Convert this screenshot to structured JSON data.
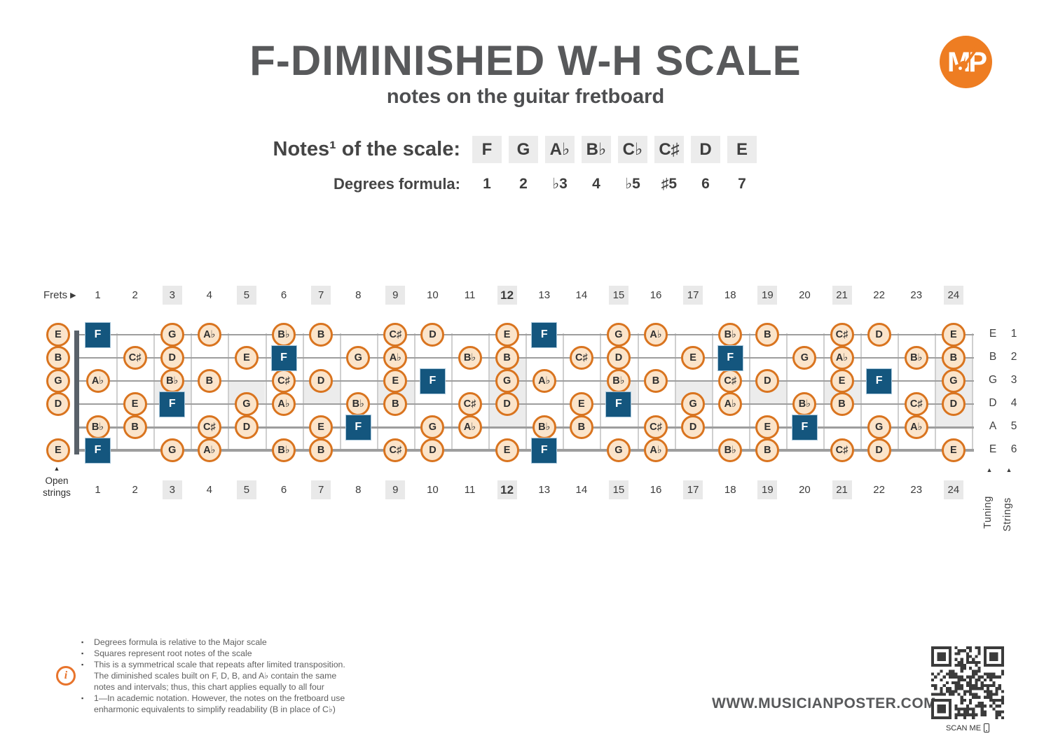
{
  "header": {
    "title": "F-DIMINISHED W-H SCALE",
    "subtitle": "notes on the guitar fretboard",
    "logo_text": "MP"
  },
  "scale": {
    "notes_label": "Notes¹ of the scale:",
    "notes": [
      "F",
      "G",
      "A♭",
      "B♭",
      "C♭",
      "C♯",
      "D",
      "E"
    ],
    "degrees_label": "Degrees formula:",
    "degrees": [
      "1",
      "2",
      "♭3",
      "4",
      "♭5",
      "♯5",
      "6",
      "7"
    ]
  },
  "fretboard": {
    "frets_label": "Frets",
    "frets_arrow": "▶",
    "fret_numbers": [
      1,
      2,
      3,
      4,
      5,
      6,
      7,
      8,
      9,
      10,
      11,
      12,
      13,
      14,
      15,
      16,
      17,
      18,
      19,
      20,
      21,
      22,
      23,
      24
    ],
    "marker_frets": [
      3,
      5,
      7,
      9,
      15,
      17,
      19,
      21
    ],
    "double_marker_frets": [
      12,
      24
    ],
    "bold_frets": [
      12
    ],
    "open_strings_arrow": "▲",
    "open_strings_label": "Open strings",
    "tuning_label": "Tuning",
    "strings_label": "Strings",
    "tuning_arrow": "▲",
    "strings_arrow": "▲",
    "strings": [
      {
        "tuning": "E",
        "number": 1,
        "open": "E",
        "notes": [
          {
            "fret": 1,
            "label": "F",
            "root": true
          },
          {
            "fret": 3,
            "label": "G"
          },
          {
            "fret": 4,
            "label": "A♭"
          },
          {
            "fret": 6,
            "label": "B♭"
          },
          {
            "fret": 7,
            "label": "B"
          },
          {
            "fret": 9,
            "label": "C♯"
          },
          {
            "fret": 10,
            "label": "D"
          },
          {
            "fret": 12,
            "label": "E"
          },
          {
            "fret": 13,
            "label": "F",
            "root": true
          },
          {
            "fret": 15,
            "label": "G"
          },
          {
            "fret": 16,
            "label": "A♭"
          },
          {
            "fret": 18,
            "label": "B♭"
          },
          {
            "fret": 19,
            "label": "B"
          },
          {
            "fret": 21,
            "label": "C♯"
          },
          {
            "fret": 22,
            "label": "D"
          },
          {
            "fret": 24,
            "label": "E"
          }
        ]
      },
      {
        "tuning": "B",
        "number": 2,
        "open": "B",
        "notes": [
          {
            "fret": 2,
            "label": "C♯"
          },
          {
            "fret": 3,
            "label": "D"
          },
          {
            "fret": 5,
            "label": "E"
          },
          {
            "fret": 6,
            "label": "F",
            "root": true
          },
          {
            "fret": 8,
            "label": "G"
          },
          {
            "fret": 9,
            "label": "A♭"
          },
          {
            "fret": 11,
            "label": "B♭"
          },
          {
            "fret": 12,
            "label": "B"
          },
          {
            "fret": 14,
            "label": "C♯"
          },
          {
            "fret": 15,
            "label": "D"
          },
          {
            "fret": 17,
            "label": "E"
          },
          {
            "fret": 18,
            "label": "F",
            "root": true
          },
          {
            "fret": 20,
            "label": "G"
          },
          {
            "fret": 21,
            "label": "A♭"
          },
          {
            "fret": 23,
            "label": "B♭"
          },
          {
            "fret": 24,
            "label": "B"
          }
        ]
      },
      {
        "tuning": "G",
        "number": 3,
        "open": "G",
        "notes": [
          {
            "fret": 1,
            "label": "A♭"
          },
          {
            "fret": 3,
            "label": "B♭"
          },
          {
            "fret": 4,
            "label": "B"
          },
          {
            "fret": 6,
            "label": "C♯"
          },
          {
            "fret": 7,
            "label": "D"
          },
          {
            "fret": 9,
            "label": "E"
          },
          {
            "fret": 10,
            "label": "F",
            "root": true
          },
          {
            "fret": 12,
            "label": "G"
          },
          {
            "fret": 13,
            "label": "A♭"
          },
          {
            "fret": 15,
            "label": "B♭"
          },
          {
            "fret": 16,
            "label": "B"
          },
          {
            "fret": 18,
            "label": "C♯"
          },
          {
            "fret": 19,
            "label": "D"
          },
          {
            "fret": 21,
            "label": "E"
          },
          {
            "fret": 22,
            "label": "F",
            "root": true
          },
          {
            "fret": 24,
            "label": "G"
          }
        ]
      },
      {
        "tuning": "D",
        "number": 4,
        "open": "D",
        "notes": [
          {
            "fret": 2,
            "label": "E"
          },
          {
            "fret": 3,
            "label": "F",
            "root": true
          },
          {
            "fret": 5,
            "label": "G"
          },
          {
            "fret": 6,
            "label": "A♭"
          },
          {
            "fret": 8,
            "label": "B♭"
          },
          {
            "fret": 9,
            "label": "B"
          },
          {
            "fret": 11,
            "label": "C♯"
          },
          {
            "fret": 12,
            "label": "D"
          },
          {
            "fret": 14,
            "label": "E"
          },
          {
            "fret": 15,
            "label": "F",
            "root": true
          },
          {
            "fret": 17,
            "label": "G"
          },
          {
            "fret": 18,
            "label": "A♭"
          },
          {
            "fret": 20,
            "label": "B♭"
          },
          {
            "fret": 21,
            "label": "B"
          },
          {
            "fret": 23,
            "label": "C♯"
          },
          {
            "fret": 24,
            "label": "D"
          }
        ]
      },
      {
        "tuning": "A",
        "number": 5,
        "open": null,
        "notes": [
          {
            "fret": 1,
            "label": "B♭"
          },
          {
            "fret": 2,
            "label": "B"
          },
          {
            "fret": 4,
            "label": "C♯"
          },
          {
            "fret": 5,
            "label": "D"
          },
          {
            "fret": 7,
            "label": "E"
          },
          {
            "fret": 8,
            "label": "F",
            "root": true
          },
          {
            "fret": 10,
            "label": "G"
          },
          {
            "fret": 11,
            "label": "A♭"
          },
          {
            "fret": 13,
            "label": "B♭"
          },
          {
            "fret": 14,
            "label": "B"
          },
          {
            "fret": 16,
            "label": "C♯"
          },
          {
            "fret": 17,
            "label": "D"
          },
          {
            "fret": 19,
            "label": "E"
          },
          {
            "fret": 20,
            "label": "F",
            "root": true
          },
          {
            "fret": 22,
            "label": "G"
          },
          {
            "fret": 23,
            "label": "A♭"
          }
        ]
      },
      {
        "tuning": "E",
        "number": 6,
        "open": "E",
        "notes": [
          {
            "fret": 1,
            "label": "F",
            "root": true
          },
          {
            "fret": 3,
            "label": "G"
          },
          {
            "fret": 4,
            "label": "A♭"
          },
          {
            "fret": 6,
            "label": "B♭"
          },
          {
            "fret": 7,
            "label": "B"
          },
          {
            "fret": 9,
            "label": "C♯"
          },
          {
            "fret": 10,
            "label": "D"
          },
          {
            "fret": 12,
            "label": "E"
          },
          {
            "fret": 13,
            "label": "F",
            "root": true
          },
          {
            "fret": 15,
            "label": "G"
          },
          {
            "fret": 16,
            "label": "A♭"
          },
          {
            "fret": 18,
            "label": "B♭"
          },
          {
            "fret": 19,
            "label": "B"
          },
          {
            "fret": 21,
            "label": "C♯"
          },
          {
            "fret": 22,
            "label": "D"
          },
          {
            "fret": 24,
            "label": "E"
          }
        ]
      }
    ]
  },
  "footer": {
    "info_icon": "i",
    "notes": [
      [
        "Degrees formula is relative to the Major scale"
      ],
      [
        "Squares represent root notes of the scale"
      ],
      [
        "This is a symmetrical scale that repeats after limited transposition.",
        "The diminished scales built on F, D, B, and A♭ contain the same",
        "notes and intervals; thus, this chart applies equally to all four"
      ],
      [
        "1—In academic notation. However, the notes on the fretboard use",
        "enharmonic equivalents to simplify readability (B in place of C♭)"
      ]
    ],
    "website": "WWW.MUSICIANPOSTER.COM",
    "scan_label": "SCAN ME"
  },
  "colors": {
    "accent_orange": "#e8742c",
    "note_fill": "#fbe4ca",
    "note_border": "#d9741f",
    "root_blue": "#14567e",
    "highlight_gray": "#e9e9e9",
    "title_gray": "#58595b",
    "qr_dark": "#3b3b3b"
  }
}
